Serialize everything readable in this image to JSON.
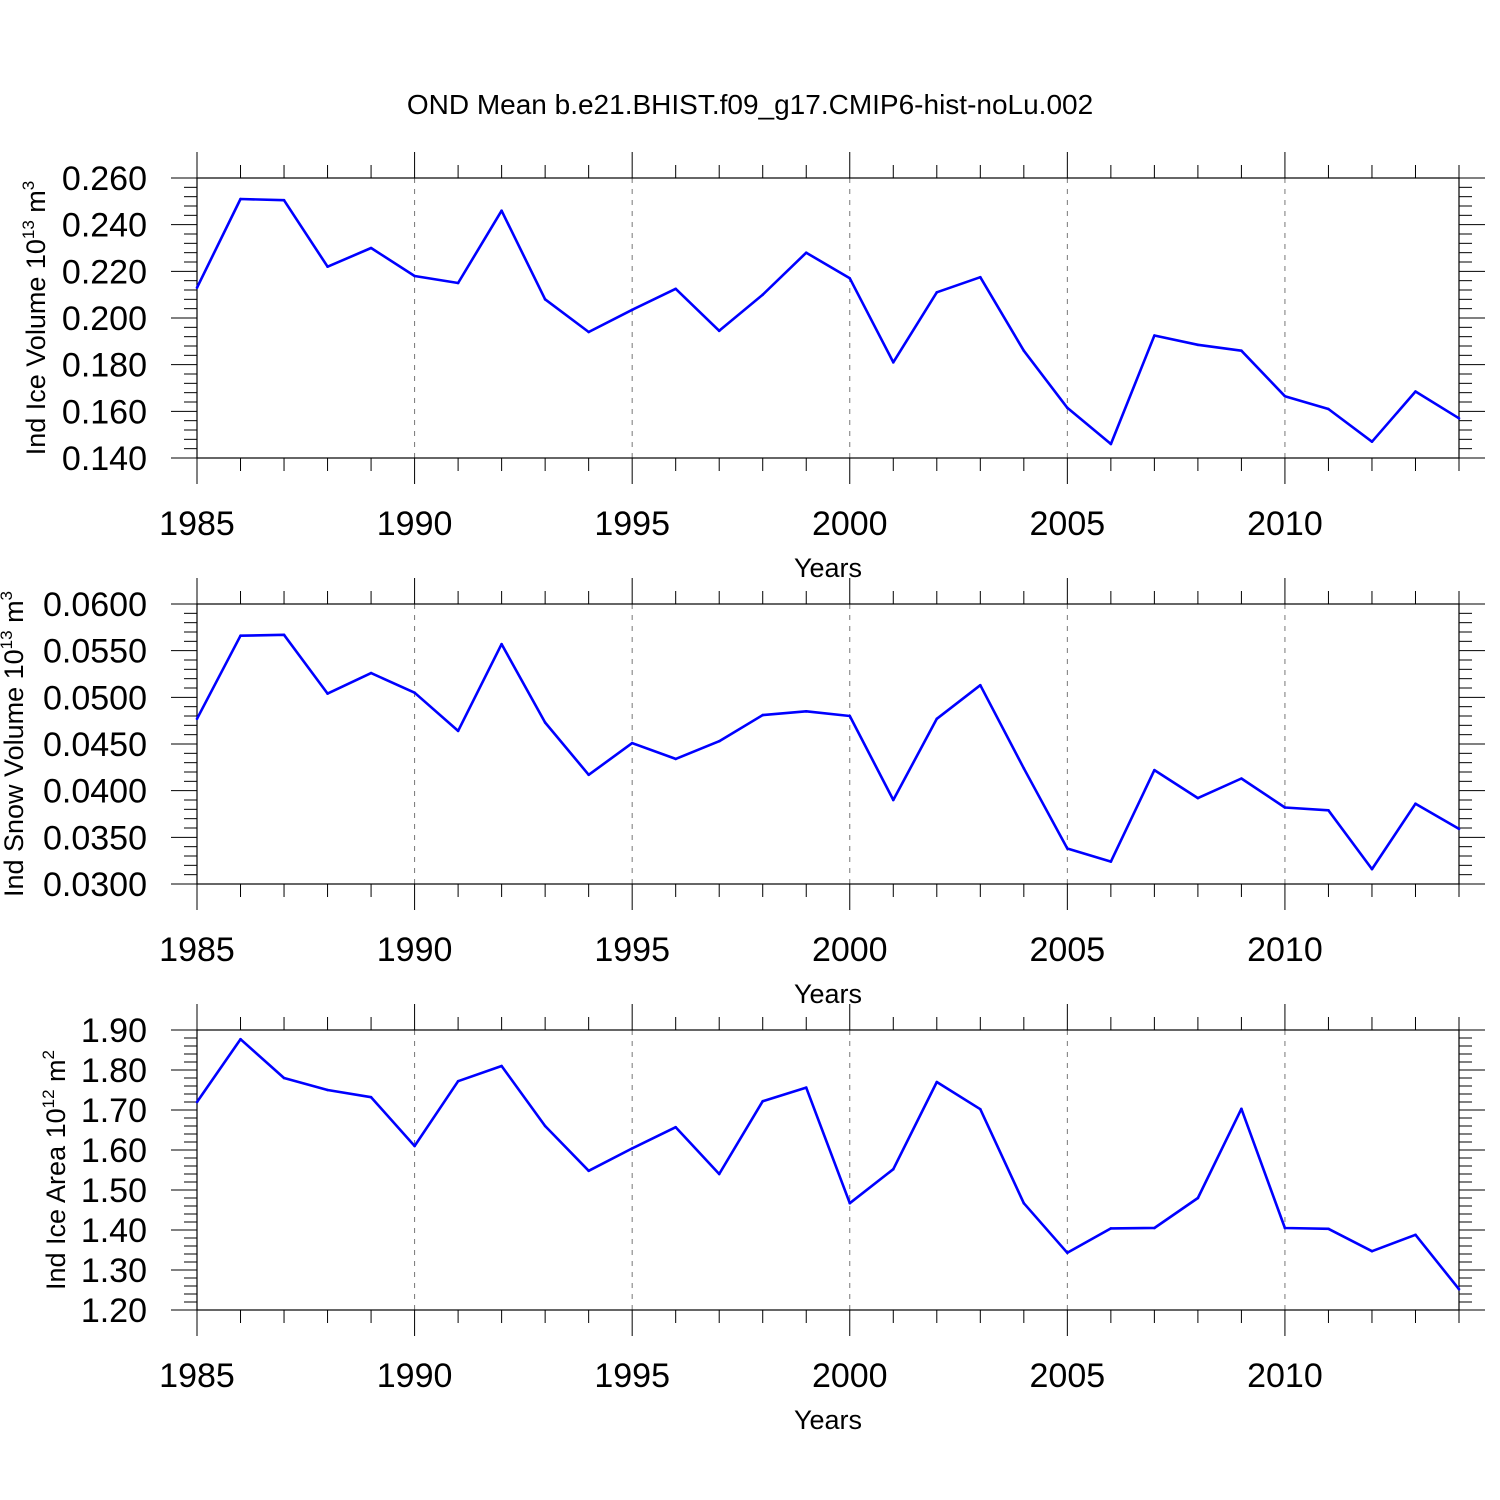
{
  "title": "OND Mean b.e21.BHIST.f09_g17.CMIP6-hist-noLu.002",
  "chart_data": [
    {
      "type": "line",
      "ylabel": {
        "main": "Ind Ice Volume 10",
        "exponent": "13",
        "unit": "m",
        "unit_exponent": "3"
      },
      "xlabel": "Years",
      "xlim": [
        1985,
        2014
      ],
      "ylim": [
        0.14,
        0.26
      ],
      "yticks": [
        "0.140",
        "0.160",
        "0.180",
        "0.200",
        "0.220",
        "0.240",
        "0.260"
      ],
      "ytick_values": [
        0.14,
        0.16,
        0.18,
        0.2,
        0.22,
        0.24,
        0.26
      ],
      "xticks": [
        "1985",
        "1990",
        "1995",
        "2000",
        "2005",
        "2010"
      ],
      "xtick_values": [
        1985,
        1990,
        1995,
        2000,
        2005,
        2010
      ],
      "line_color": "#0000ff",
      "x": [
        1985,
        1986,
        1987,
        1988,
        1989,
        1990,
        1991,
        1992,
        1993,
        1994,
        1995,
        1996,
        1997,
        1998,
        1999,
        2000,
        2001,
        2002,
        2003,
        2004,
        2005,
        2006,
        2007,
        2008,
        2009,
        2010,
        2011,
        2012,
        2013,
        2014
      ],
      "values": [
        0.213,
        0.251,
        0.2505,
        0.222,
        0.23,
        0.218,
        0.215,
        0.246,
        0.208,
        0.194,
        0.2035,
        0.2125,
        0.1945,
        0.21,
        0.228,
        0.217,
        0.181,
        0.211,
        0.2175,
        0.186,
        0.1615,
        0.146,
        0.1925,
        0.1885,
        0.186,
        0.1665,
        0.161,
        0.147,
        0.1685,
        0.157
      ]
    },
    {
      "type": "line",
      "ylabel": {
        "main": "Ind Snow Volume 10",
        "exponent": "13",
        "unit": "m",
        "unit_exponent": "3"
      },
      "xlabel": "Years",
      "xlim": [
        1985,
        2014
      ],
      "ylim": [
        0.03,
        0.06
      ],
      "yticks": [
        "0.0300",
        "0.0350",
        "0.0400",
        "0.0450",
        "0.0500",
        "0.0550",
        "0.0600"
      ],
      "ytick_values": [
        0.03,
        0.035,
        0.04,
        0.045,
        0.05,
        0.055,
        0.06
      ],
      "xticks": [
        "1985",
        "1990",
        "1995",
        "2000",
        "2005",
        "2010"
      ],
      "xtick_values": [
        1985,
        1990,
        1995,
        2000,
        2005,
        2010
      ],
      "line_color": "#0000ff",
      "x": [
        1985,
        1986,
        1987,
        1988,
        1989,
        1990,
        1991,
        1992,
        1993,
        1994,
        1995,
        1996,
        1997,
        1998,
        1999,
        2000,
        2001,
        2002,
        2003,
        2004,
        2005,
        2006,
        2007,
        2008,
        2009,
        2010,
        2011,
        2012,
        2013,
        2014
      ],
      "values": [
        0.0477,
        0.0566,
        0.0567,
        0.0504,
        0.0526,
        0.0505,
        0.0464,
        0.0557,
        0.0473,
        0.0417,
        0.0451,
        0.0434,
        0.0453,
        0.0481,
        0.0485,
        0.048,
        0.039,
        0.0477,
        0.0513,
        0.0424,
        0.0338,
        0.0324,
        0.0422,
        0.0392,
        0.0413,
        0.0382,
        0.0379,
        0.0316,
        0.0386,
        0.0359
      ]
    },
    {
      "type": "line",
      "ylabel": {
        "main": "Ind Ice Area 10",
        "exponent": "12",
        "unit": "m",
        "unit_exponent": "2"
      },
      "xlabel": "Years",
      "xlim": [
        1985,
        2014
      ],
      "ylim": [
        1.2,
        1.9
      ],
      "yticks": [
        "1.20",
        "1.30",
        "1.40",
        "1.50",
        "1.60",
        "1.70",
        "1.80",
        "1.90"
      ],
      "ytick_values": [
        1.2,
        1.3,
        1.4,
        1.5,
        1.6,
        1.7,
        1.8,
        1.9
      ],
      "xticks": [
        "1985",
        "1990",
        "1995",
        "2000",
        "2005",
        "2010"
      ],
      "xtick_values": [
        1985,
        1990,
        1995,
        2000,
        2005,
        2010
      ],
      "line_color": "#0000ff",
      "x": [
        1985,
        1986,
        1987,
        1988,
        1989,
        1990,
        1991,
        1992,
        1993,
        1994,
        1995,
        1996,
        1997,
        1998,
        1999,
        2000,
        2001,
        2002,
        2003,
        2004,
        2005,
        2006,
        2007,
        2008,
        2009,
        2010,
        2011,
        2012,
        2013,
        2014
      ],
      "values": [
        1.72,
        1.877,
        1.78,
        1.75,
        1.732,
        1.61,
        1.772,
        1.81,
        1.66,
        1.548,
        1.604,
        1.657,
        1.54,
        1.722,
        1.756,
        1.467,
        1.552,
        1.77,
        1.702,
        1.467,
        1.343,
        1.404,
        1.405,
        1.48,
        1.703,
        1.405,
        1.403,
        1.347,
        1.388,
        1.252
      ]
    }
  ]
}
